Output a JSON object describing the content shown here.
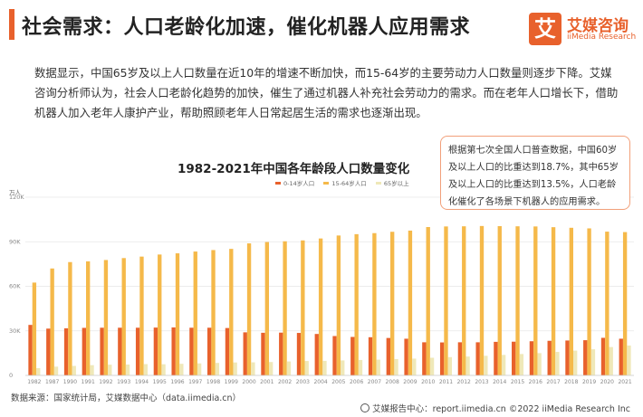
{
  "header": {
    "title": "社会需求：人口老龄化加速，催化机器人应用需求",
    "logo_mark": "艾",
    "logo_cn": "艾媒咨询",
    "logo_en": "iiMedia Research"
  },
  "description": "数据显示，中国65岁及以上人口数量在近10年的增速不断加快，而15-64岁的主要劳动力人口数量则逐步下降。艾媒咨询分析师认为，社会人口老龄化趋势的加快，催生了通过机器人补充社会劳动力的需求。而在老年人口增长下，借助机器人加入老年人康护产业，帮助照顾老年人日常起居生活的需求也逐渐出现。",
  "callout": "根据第七次全国人口普查数据，中国60岁及以上人口的比重达到18.7%，其中65岁及以上人口的比重达到13.5%，人口老龄化催化了各场景下机器人的应用需求。",
  "source": "数据来源：国家统计局，艾媒数据中心（data.iimedia.cn）",
  "footer": "艾媒报告中心：report.iimedia.cn ©2022 iiMedia Research Inc",
  "colors": {
    "s0_14": "#e8612c",
    "s15_64": "#f5b94a",
    "s65": "#efe8b8"
  },
  "chart_data": {
    "type": "bar",
    "title": "1982-2021年中国各年龄段人口数量变化",
    "unit": "万人",
    "ylim": [
      0,
      120000
    ],
    "yticks": [
      0,
      30000,
      60000,
      90000,
      120000
    ],
    "ytick_labels": [
      "0",
      "30K",
      "60K",
      "90K",
      "120K"
    ],
    "legend_position": "top-center",
    "categories": [
      "1982",
      "1987",
      "1990",
      "1991",
      "1992",
      "1993",
      "1994",
      "1995",
      "1996",
      "1997",
      "1998",
      "1999",
      "2000",
      "2001",
      "2002",
      "2003",
      "2004",
      "2005",
      "2006",
      "2007",
      "2008",
      "2009",
      "2010",
      "2011",
      "2012",
      "2013",
      "2014",
      "2015",
      "2016",
      "2017",
      "2018",
      "2019",
      "2020",
      "2021"
    ],
    "series": [
      {
        "name": "0-14岁人口",
        "values": [
          34000,
          31500,
          31700,
          32000,
          32100,
          32100,
          32100,
          32200,
          32300,
          32100,
          32100,
          31900,
          29000,
          28700,
          28800,
          28600,
          27900,
          26500,
          25900,
          25700,
          25200,
          24700,
          22300,
          22200,
          22300,
          22300,
          22600,
          22700,
          23000,
          23300,
          23500,
          23700,
          25300,
          24700
        ]
      },
      {
        "name": "15-64岁人口",
        "values": [
          62500,
          72000,
          76300,
          76800,
          77700,
          79000,
          80000,
          81400,
          82200,
          83400,
          84400,
          85200,
          88900,
          89800,
          90300,
          90900,
          92200,
          94200,
          95100,
          95800,
          96700,
          97500,
          99900,
          100300,
          100400,
          100600,
          100500,
          100400,
          100300,
          99800,
          99400,
          99000,
          96800,
          96500
        ]
      },
      {
        "name": "65岁以上",
        "values": [
          4900,
          5900,
          6400,
          6900,
          7200,
          7300,
          7600,
          7500,
          7800,
          8100,
          8400,
          8700,
          8800,
          9000,
          9400,
          9700,
          9800,
          10100,
          10400,
          10600,
          11000,
          11300,
          11900,
          12300,
          12700,
          13200,
          13800,
          14400,
          15000,
          15800,
          16700,
          17600,
          19100,
          20100
        ]
      }
    ]
  }
}
